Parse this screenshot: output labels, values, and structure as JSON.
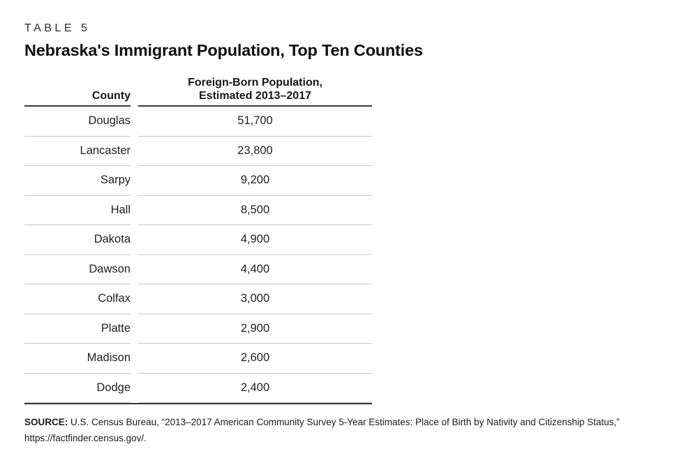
{
  "page": {
    "label": "TABLE 5",
    "title": "Nebraska's Immigrant Population, Top Ten Counties"
  },
  "table": {
    "columns": {
      "county": "County",
      "population_line1": "Foreign-Born Population,",
      "population_line2": "Estimated 2013–2017"
    },
    "rows": [
      {
        "county": "Douglas",
        "population": "51,700"
      },
      {
        "county": "Lancaster",
        "population": "23,800"
      },
      {
        "county": "Sarpy",
        "population": "9,200"
      },
      {
        "county": "Hall",
        "population": "8,500"
      },
      {
        "county": "Dakota",
        "population": "4,900"
      },
      {
        "county": "Dawson",
        "population": "4,400"
      },
      {
        "county": "Colfax",
        "population": "3,000"
      },
      {
        "county": "Platte",
        "population": "2,900"
      },
      {
        "county": "Madison",
        "population": "2,600"
      },
      {
        "county": "Dodge",
        "population": "2,400"
      }
    ]
  },
  "source": {
    "label": "SOURCE:",
    "line1": "U.S. Census Bureau, “2013–2017 American Community Survey 5-Year Estimates: Place of Birth by Nativity and Citizenship Status,”",
    "line2": "https://factfinder.census.gov/."
  },
  "colors": {
    "background": "#ffffff",
    "text": "#1d1d1d",
    "rule_dark": "#383838",
    "rule_light": "#c7c7c7"
  }
}
